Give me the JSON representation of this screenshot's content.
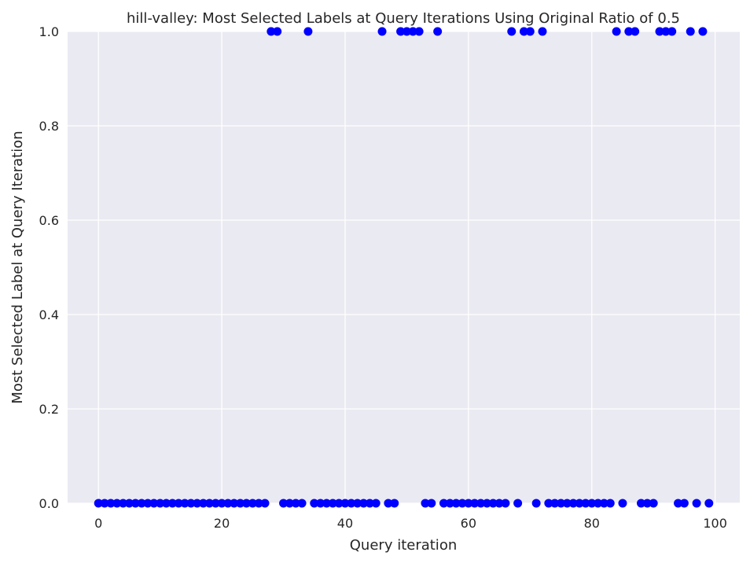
{
  "chart_data": {
    "type": "scatter",
    "title": "hill-valley: Most Selected Labels at Query Iterations Using Original Ratio of 0.5",
    "xlabel": "Query iteration",
    "ylabel": "Most Selected Label at Query Iteration",
    "xlim": [
      -5,
      104
    ],
    "ylim": [
      0,
      1
    ],
    "xticks": [
      0,
      20,
      40,
      60,
      80,
      100
    ],
    "yticks": [
      0.0,
      0.2,
      0.4,
      0.6,
      0.8,
      1.0
    ],
    "xtick_labels": [
      "0",
      "20",
      "40",
      "60",
      "80",
      "100"
    ],
    "ytick_labels": [
      "0.0",
      "0.2",
      "0.4",
      "0.6",
      "0.8",
      "1.0"
    ],
    "grid": true,
    "colors": {
      "background": "#eaeaf2",
      "grid": "#ffffff",
      "marker": "#0000ff"
    },
    "series": [
      {
        "x": [
          0,
          1,
          2,
          3,
          4,
          5,
          6,
          7,
          8,
          9,
          10,
          11,
          12,
          13,
          14,
          15,
          16,
          17,
          18,
          19,
          20,
          21,
          22,
          23,
          24,
          25,
          26,
          27,
          28,
          29,
          30,
          31,
          32,
          33,
          34,
          35,
          36,
          37,
          38,
          39,
          40,
          41,
          42,
          43,
          44,
          45,
          46,
          47,
          48,
          49,
          50,
          51,
          52,
          53,
          54,
          55,
          56,
          57,
          58,
          59,
          60,
          61,
          62,
          63,
          64,
          65,
          66,
          67,
          68,
          69,
          70,
          71,
          72,
          73,
          74,
          75,
          76,
          77,
          78,
          79,
          80,
          81,
          82,
          83,
          84,
          85,
          86,
          87,
          88,
          89,
          90,
          91,
          92,
          93,
          94,
          95,
          96,
          97,
          98,
          99
        ],
        "y": [
          0,
          0,
          0,
          0,
          0,
          0,
          0,
          0,
          0,
          0,
          0,
          0,
          0,
          0,
          0,
          0,
          0,
          0,
          0,
          0,
          0,
          0,
          0,
          0,
          0,
          0,
          0,
          0,
          1,
          1,
          0,
          0,
          0,
          0,
          1,
          0,
          0,
          0,
          0,
          0,
          0,
          0,
          0,
          0,
          0,
          0,
          1,
          0,
          0,
          1,
          1,
          1,
          1,
          0,
          0,
          1,
          0,
          0,
          0,
          0,
          0,
          0,
          0,
          0,
          0,
          0,
          0,
          1,
          0,
          1,
          1,
          0,
          1,
          0,
          0,
          0,
          0,
          0,
          0,
          0,
          0,
          0,
          0,
          0,
          1,
          0,
          1,
          1,
          0,
          0,
          0,
          1,
          1,
          1,
          0,
          0,
          1,
          0,
          1,
          0
        ]
      }
    ]
  }
}
